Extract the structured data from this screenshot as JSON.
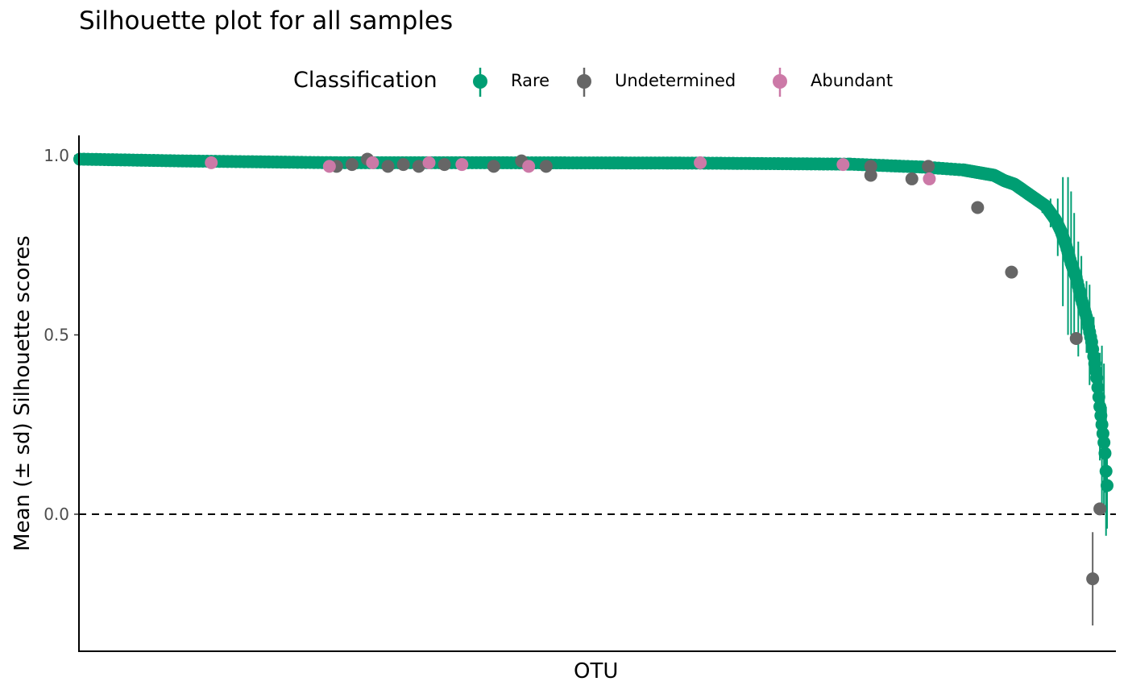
{
  "chart_data": {
    "type": "scatter",
    "title": "Silhouette plot for all samples",
    "xlabel": "OTU",
    "ylabel": "Mean (± sd) Silhouette scores",
    "ylim": [
      -0.38,
      1.05
    ],
    "yticks": [
      0.0,
      0.5,
      1.0
    ],
    "ytick_labels": [
      "0.0",
      "0.5",
      "1.0"
    ],
    "reference_line": {
      "y": 0.0,
      "style": "dashed"
    },
    "legend": {
      "title": "Classification",
      "placement": "top",
      "entries": [
        {
          "name": "Rare",
          "color": "#009E73"
        },
        {
          "name": "Undetermined",
          "color": "#666666"
        },
        {
          "name": "Abundant",
          "color": "#CC79A7"
        }
      ]
    },
    "x_rank_count": 1000,
    "rare_curve": [
      [
        0,
        0.99
      ],
      [
        100,
        0.985
      ],
      [
        250,
        0.98
      ],
      [
        400,
        0.98
      ],
      [
        600,
        0.979
      ],
      [
        750,
        0.976
      ],
      [
        820,
        0.968
      ],
      [
        860,
        0.96
      ],
      [
        870,
        0.955
      ],
      [
        880,
        0.95
      ],
      [
        890,
        0.945
      ],
      [
        900,
        0.93
      ],
      [
        910,
        0.92
      ],
      [
        920,
        0.9
      ],
      [
        930,
        0.88
      ],
      [
        940,
        0.86
      ],
      [
        945,
        0.84
      ],
      [
        950,
        0.82
      ],
      [
        955,
        0.79
      ],
      [
        960,
        0.75
      ],
      [
        965,
        0.7
      ],
      [
        970,
        0.66
      ],
      [
        975,
        0.6
      ],
      [
        980,
        0.55
      ],
      [
        985,
        0.48
      ],
      [
        988,
        0.42
      ],
      [
        990,
        0.38
      ],
      [
        993,
        0.3
      ],
      [
        995,
        0.25
      ],
      [
        997,
        0.2
      ],
      [
        998,
        0.17
      ],
      [
        999,
        0.12
      ],
      [
        1000,
        0.08
      ]
    ],
    "rare_error_bars": [
      [
        937,
        0.86,
        0.02
      ],
      [
        945,
        0.84,
        0.04
      ],
      [
        952,
        0.8,
        0.08
      ],
      [
        957,
        0.76,
        0.18
      ],
      [
        962,
        0.72,
        0.22
      ],
      [
        965,
        0.7,
        0.2
      ],
      [
        968,
        0.66,
        0.18
      ],
      [
        972,
        0.6,
        0.16
      ],
      [
        975,
        0.6,
        0.12
      ],
      [
        980,
        0.55,
        0.1
      ],
      [
        983,
        0.5,
        0.14
      ],
      [
        987,
        0.45,
        0.1
      ],
      [
        990,
        0.38,
        0.1
      ],
      [
        993,
        0.3,
        0.15
      ],
      [
        995,
        0.25,
        0.22
      ],
      [
        997,
        0.22,
        0.2
      ],
      [
        998,
        0.18,
        0.12
      ],
      [
        999,
        0.12,
        0.18
      ],
      [
        1000,
        0.08,
        0.12
      ]
    ],
    "undetermined_points": [
      [
        250,
        0.97,
        0.0
      ],
      [
        265,
        0.975,
        0.0
      ],
      [
        280,
        0.99,
        0.0
      ],
      [
        300,
        0.97,
        0.0
      ],
      [
        315,
        0.975,
        0.0
      ],
      [
        330,
        0.97,
        0.0
      ],
      [
        355,
        0.975,
        0.0
      ],
      [
        403,
        0.97,
        0.0
      ],
      [
        430,
        0.985,
        0.0
      ],
      [
        454,
        0.97,
        0.0
      ],
      [
        770,
        0.97,
        0.0
      ],
      [
        770,
        0.945,
        0.0
      ],
      [
        810,
        0.935,
        0.0
      ],
      [
        826,
        0.97,
        0.0
      ],
      [
        874,
        0.855,
        0.0
      ],
      [
        907,
        0.675,
        0.0
      ],
      [
        970,
        0.49,
        0.0
      ],
      [
        986,
        -0.18,
        0.13
      ],
      [
        993,
        0.015,
        0.0
      ]
    ],
    "abundant_points": [
      [
        128,
        0.98,
        0.0
      ],
      [
        243,
        0.97,
        0.0
      ],
      [
        285,
        0.98,
        0.0
      ],
      [
        340,
        0.98,
        0.0
      ],
      [
        372,
        0.975,
        0.0
      ],
      [
        437,
        0.97,
        0.0
      ],
      [
        604,
        0.98,
        0.0
      ],
      [
        743,
        0.975,
        0.0
      ],
      [
        827,
        0.935,
        0.0
      ]
    ]
  }
}
